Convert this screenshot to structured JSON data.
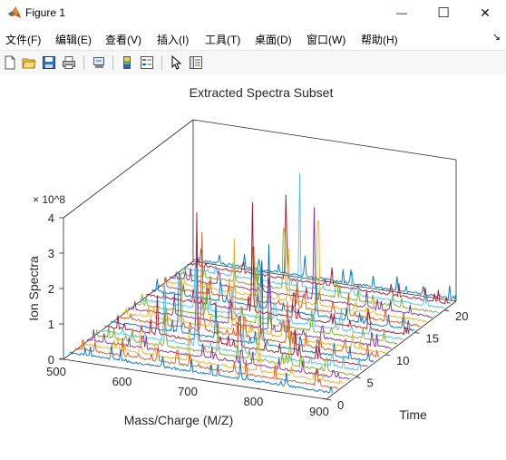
{
  "window": {
    "title": "Figure 1",
    "minimize_glyph": "—",
    "maximize_glyph": "☐",
    "close_glyph": "✕",
    "app_icon": "matlab-logo-icon"
  },
  "menu": {
    "items": [
      "文件(F)",
      "编辑(E)",
      "查看(V)",
      "插入(I)",
      "工具(T)",
      "桌面(D)",
      "窗口(W)",
      "帮助(H)"
    ],
    "overflow_glyph": "↘"
  },
  "toolbar": {
    "icons": [
      "new-figure-icon",
      "open-file-icon",
      "save-icon",
      "print-icon",
      "link-plot-icon",
      "colorbar-icon",
      "legend-icon",
      "pointer-icon",
      "property-inspector-icon"
    ]
  },
  "chart_data": {
    "type": "line",
    "subtype": "waterfall-3d",
    "title": "Extracted Spectra Subset",
    "xlabel": "Mass/Charge (M/Z)",
    "ylabel": "Time",
    "zlabel": "Ion Spectra",
    "z_exponent": "× 10^8",
    "xlim": [
      500,
      900
    ],
    "ylim": [
      0,
      22
    ],
    "zlim": [
      0,
      4
    ],
    "xticks": [
      "500",
      "600",
      "700",
      "800",
      "900"
    ],
    "yticks": [
      "0",
      "5",
      "10",
      "15",
      "20"
    ],
    "zticks": [
      "0",
      "1",
      "2",
      "3",
      "4"
    ],
    "grid": false,
    "series_count": 22,
    "color_order": [
      "#0072BD",
      "#D95319",
      "#EDB120",
      "#7E2F8E",
      "#77AC30",
      "#4DBEEE",
      "#A2142F"
    ],
    "series": [
      {
        "time": 1,
        "peaks": [
          [
            564,
            0.4
          ],
          [
            642,
            0.3
          ],
          [
            760,
            0.5
          ],
          [
            830,
            0.4
          ]
        ]
      },
      {
        "time": 2,
        "peaks": [
          [
            572,
            0.5
          ],
          [
            655,
            0.6
          ],
          [
            742,
            0.3
          ],
          [
            868,
            0.4
          ]
        ]
      },
      {
        "time": 3,
        "peaks": [
          [
            590,
            0.6
          ],
          [
            664,
            0.8
          ],
          [
            770,
            1.5
          ],
          [
            820,
            0.3
          ]
        ]
      },
      {
        "time": 4,
        "peaks": [
          [
            585,
            0.5
          ],
          [
            676,
            0.4
          ],
          [
            735,
            0.6
          ],
          [
            875,
            0.3
          ]
        ]
      },
      {
        "time": 5,
        "peaks": [
          [
            560,
            0.3
          ],
          [
            610,
            1.0
          ],
          [
            690,
            0.7
          ],
          [
            800,
            0.9
          ]
        ]
      },
      {
        "time": 6,
        "peaks": [
          [
            600,
            1.8
          ],
          [
            648,
            2.2
          ],
          [
            720,
            0.6
          ],
          [
            855,
            0.5
          ]
        ]
      },
      {
        "time": 7,
        "peaks": [
          [
            580,
            1.1
          ],
          [
            640,
            3.6
          ],
          [
            705,
            1.4
          ],
          [
            790,
            0.7
          ]
        ]
      },
      {
        "time": 8,
        "peaks": [
          [
            605,
            2.7
          ],
          [
            660,
            1.0
          ],
          [
            730,
            2.4
          ],
          [
            815,
            0.6
          ]
        ]
      },
      {
        "time": 9,
        "peaks": [
          [
            575,
            0.8
          ],
          [
            630,
            2.8
          ],
          [
            695,
            0.9
          ],
          [
            760,
            1.2
          ]
        ]
      },
      {
        "time": 10,
        "peaks": [
          [
            590,
            1.3
          ],
          [
            670,
            2.6
          ],
          [
            745,
            0.8
          ],
          [
            850,
            0.4
          ]
        ]
      },
      {
        "time": 11,
        "peaks": [
          [
            570,
            0.6
          ],
          [
            655,
            1.1
          ],
          [
            715,
            2.0
          ],
          [
            795,
            0.5
          ]
        ]
      },
      {
        "time": 12,
        "peaks": [
          [
            610,
            0.9
          ],
          [
            688,
            1.7
          ],
          [
            770,
            0.6
          ],
          [
            880,
            0.3
          ]
        ]
      },
      {
        "time": 13,
        "peaks": [
          [
            585,
            2.1
          ],
          [
            640,
            0.7
          ],
          [
            705,
            0.8
          ],
          [
            805,
            0.5
          ]
        ]
      },
      {
        "time": 14,
        "peaks": [
          [
            595,
            0.7
          ],
          [
            662,
            3.1
          ],
          [
            725,
            1.1
          ],
          [
            840,
            0.4
          ]
        ]
      },
      {
        "time": 15,
        "peaks": [
          [
            605,
            0.6
          ],
          [
            678,
            1.8
          ],
          [
            750,
            0.9
          ],
          [
            860,
            0.3
          ]
        ]
      },
      {
        "time": 16,
        "peaks": [
          [
            580,
            0.5
          ],
          [
            645,
            2.5
          ],
          [
            712,
            0.7
          ],
          [
            790,
            0.6
          ]
        ]
      },
      {
        "time": 17,
        "peaks": [
          [
            600,
            0.4
          ],
          [
            690,
            1.5
          ],
          [
            735,
            3.9
          ],
          [
            820,
            0.4
          ]
        ]
      },
      {
        "time": 18,
        "peaks": [
          [
            575,
            0.6
          ],
          [
            640,
            0.8
          ],
          [
            720,
            2.6
          ],
          [
            800,
            0.5
          ]
        ]
      },
      {
        "time": 19,
        "peaks": [
          [
            590,
            0.5
          ],
          [
            665,
            2.8
          ],
          [
            745,
            0.7
          ],
          [
            830,
            0.3
          ]
        ]
      },
      {
        "time": 20,
        "peaks": [
          [
            610,
            0.4
          ],
          [
            680,
            3.2
          ],
          [
            760,
            0.6
          ],
          [
            870,
            0.3
          ]
        ]
      },
      {
        "time": 21,
        "peaks": [
          [
            585,
            0.3
          ],
          [
            650,
            2.4
          ],
          [
            720,
            0.5
          ],
          [
            810,
            0.3
          ]
        ]
      },
      {
        "time": 22,
        "peaks": [
          [
            600,
            0.3
          ],
          [
            670,
            0.6
          ],
          [
            740,
            0.4
          ],
          [
            850,
            0.2
          ]
        ]
      }
    ]
  }
}
